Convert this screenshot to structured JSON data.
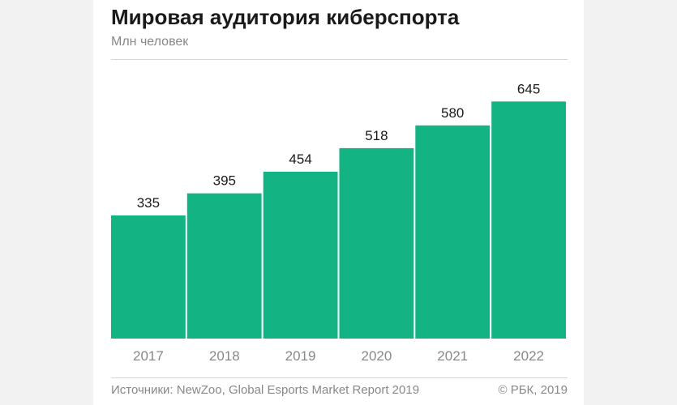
{
  "title": "Мировая аудитория киберспорта",
  "subtitle": "Млн человек",
  "footer": {
    "source": "Источники: NewZoo, Global Esports Market Report 2019",
    "credit": "© РБК, 2019"
  },
  "colors": {
    "bar": "#13b383",
    "title": "#1a1a1a",
    "muted": "#888888"
  },
  "chart_data": {
    "type": "bar",
    "title": "Мировая аудитория киберспорта",
    "subtitle": "Млн человек",
    "categories": [
      "2017",
      "2018",
      "2019",
      "2020",
      "2021",
      "2022"
    ],
    "values": [
      335,
      395,
      454,
      518,
      580,
      645
    ],
    "ylim": [
      0,
      700
    ],
    "grid": false,
    "legend": "none"
  }
}
